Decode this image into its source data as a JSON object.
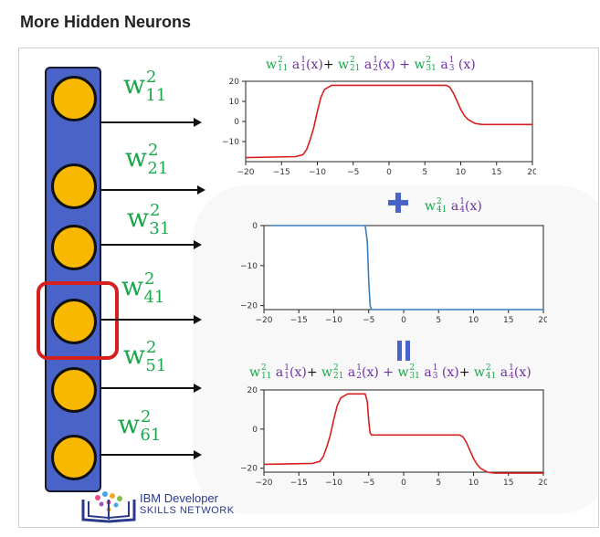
{
  "page_title": "More Hidden Neurons",
  "weights": [
    "11",
    "21",
    "31",
    "41",
    "51",
    "61"
  ],
  "weight_symbol": "w",
  "weight_superscript": "2",
  "equation_top": {
    "parts": [
      {
        "t": "w",
        "sup": "2",
        "sub": "11",
        "c": "g"
      },
      {
        "t": " "
      },
      {
        "t": "a",
        "sup": "1",
        "sub": "1",
        "c": "p"
      },
      {
        "t": "(x)",
        "c": "p"
      },
      {
        "t": "+",
        "c": "k"
      },
      {
        "t": " w",
        "sup": "2",
        "sub": "21",
        "c": "g"
      },
      {
        "t": " "
      },
      {
        "t": "a",
        "sup": "1",
        "sub": "2",
        "c": "p"
      },
      {
        "t": "(x) + ",
        "c": "p"
      },
      {
        "t": "w",
        "sup": "2",
        "sub": "31",
        "c": "g"
      },
      {
        "t": " "
      },
      {
        "t": "a",
        "sup": "1",
        "sub": "3",
        "c": "p"
      },
      {
        "t": " (x)",
        "c": "p"
      }
    ]
  },
  "equation_mid": {
    "parts": [
      {
        "t": "w",
        "sup": "2",
        "sub": "41",
        "c": "g"
      },
      {
        "t": " "
      },
      {
        "t": "a",
        "sup": "1",
        "sub": "4",
        "c": "p"
      },
      {
        "t": "(x)",
        "c": "p"
      }
    ]
  },
  "equation_bottom": {
    "parts": [
      {
        "t": "w",
        "sup": "2",
        "sub": "11",
        "c": "g"
      },
      {
        "t": " "
      },
      {
        "t": "a",
        "sup": "1",
        "sub": "1",
        "c": "p"
      },
      {
        "t": "(x)",
        "c": "p"
      },
      {
        "t": "+",
        "c": "k"
      },
      {
        "t": " w",
        "sup": "2",
        "sub": "21",
        "c": "g"
      },
      {
        "t": " "
      },
      {
        "t": "a",
        "sup": "1",
        "sub": "2",
        "c": "p"
      },
      {
        "t": "(x) + ",
        "c": "p"
      },
      {
        "t": "w",
        "sup": "2",
        "sub": "31",
        "c": "g"
      },
      {
        "t": " "
      },
      {
        "t": "a",
        "sup": "1",
        "sub": "3",
        "c": "p"
      },
      {
        "t": " (x)",
        "c": "p"
      },
      {
        "t": "+",
        "c": "k"
      },
      {
        "t": " w",
        "sup": "2",
        "sub": "41",
        "c": "g"
      },
      {
        "t": " "
      },
      {
        "t": "a",
        "sup": "1",
        "sub": "4",
        "c": "p"
      },
      {
        "t": "(x)",
        "c": "p"
      }
    ]
  },
  "logo": {
    "line1": "IBM Developer",
    "line2": "SKILLS NETWORK"
  },
  "colors": {
    "layer": "#4a63c8",
    "neuron": "#f9b800",
    "highlight": "#d62020",
    "weight_text": "#19a84a",
    "activation_text": "#6e2fa0",
    "curve_red": "#d62020",
    "curve_blue": "#3b7dbd"
  },
  "chart_data": [
    {
      "type": "line",
      "x": [
        -20,
        -13,
        -12,
        -11.5,
        -11,
        -10.5,
        -10,
        -9.5,
        -9,
        -8,
        0,
        8,
        8.5,
        9,
        9.5,
        10,
        10.5,
        11,
        11.5,
        12,
        13,
        20
      ],
      "series": [
        {
          "values": [
            -18,
            -17.5,
            -16.5,
            -14,
            -9,
            -3,
            5,
            12,
            16,
            18,
            18,
            18,
            17,
            14,
            10,
            6,
            3,
            1,
            0,
            -1,
            -1.5,
            -1.5
          ]
        }
      ],
      "xlim": [
        -20,
        20
      ],
      "ylim": [
        -20,
        20
      ],
      "xticks": [
        -20,
        -15,
        -10,
        -5,
        0,
        5,
        10,
        15,
        20
      ],
      "yticks": [
        20,
        10,
        0,
        -10
      ],
      "color": "#d62020"
    },
    {
      "type": "line",
      "x": [
        -19,
        -5.5,
        -5.2,
        -5,
        -4.8,
        -4.6,
        20
      ],
      "series": [
        {
          "values": [
            0,
            0,
            -4,
            -14,
            -20,
            -21,
            -21
          ]
        }
      ],
      "xlim": [
        -20,
        20
      ],
      "ylim": [
        -21,
        0
      ],
      "xticks": [
        -20,
        -15,
        -10,
        -5,
        0,
        5,
        10,
        15,
        20
      ],
      "yticks": [
        0,
        -10,
        -20
      ],
      "color": "#3b7dbd"
    },
    {
      "type": "line",
      "x": [
        -20,
        -13,
        -12,
        -11.5,
        -11,
        -10.5,
        -10,
        -9.5,
        -9,
        -8,
        -5.5,
        -5.2,
        -5,
        -4.8,
        -4.6,
        0,
        8,
        8.5,
        9,
        9.5,
        10,
        10.5,
        11,
        11.5,
        12,
        13,
        20
      ],
      "series": [
        {
          "values": [
            -18,
            -17.5,
            -16.5,
            -14,
            -9,
            -3,
            5,
            12,
            16,
            18,
            18,
            14,
            4,
            -2,
            -3,
            -3,
            -3,
            -4,
            -7,
            -11,
            -15,
            -18,
            -20,
            -21,
            -22,
            -22.5,
            -22.5
          ]
        }
      ],
      "xlim": [
        -20,
        20
      ],
      "ylim": [
        -22,
        20
      ],
      "xticks": [
        -20,
        -15,
        -10,
        -5,
        0,
        5,
        10,
        15,
        20
      ],
      "yticks": [
        20,
        0,
        -20
      ],
      "color": "#d62020"
    }
  ]
}
